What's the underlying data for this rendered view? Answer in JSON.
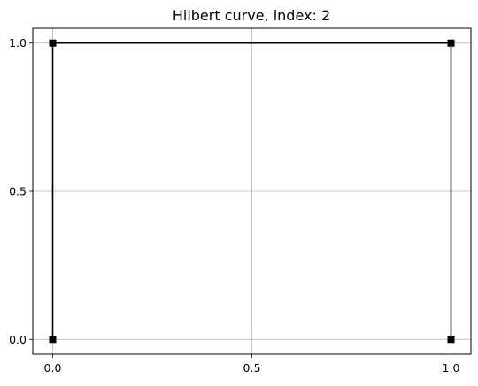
{
  "chart_data": {
    "type": "line",
    "title": "Hilbert curve, index: 2",
    "xlabel": "",
    "ylabel": "",
    "x": [
      0.0,
      0.0,
      1.0,
      1.0
    ],
    "y": [
      0.0,
      1.0,
      1.0,
      0.0
    ],
    "series": [
      {
        "x": [
          0.0,
          0.0,
          1.0,
          1.0
        ],
        "y": [
          0.0,
          1.0,
          1.0,
          0.0
        ],
        "color": "#000000",
        "marker": "square"
      }
    ],
    "xlim": [
      -0.05,
      1.05
    ],
    "ylim": [
      -0.05,
      1.05
    ],
    "xticks": [
      0.0,
      0.5,
      1.0
    ],
    "xtick_labels": [
      "0.0",
      "0.5",
      "1.0"
    ],
    "yticks": [
      0.0,
      0.5,
      1.0
    ],
    "ytick_labels": [
      "0.0",
      "0.5",
      "1.0"
    ],
    "grid": true,
    "grid_color": "#b0b0b0",
    "line_color": "#000000"
  }
}
